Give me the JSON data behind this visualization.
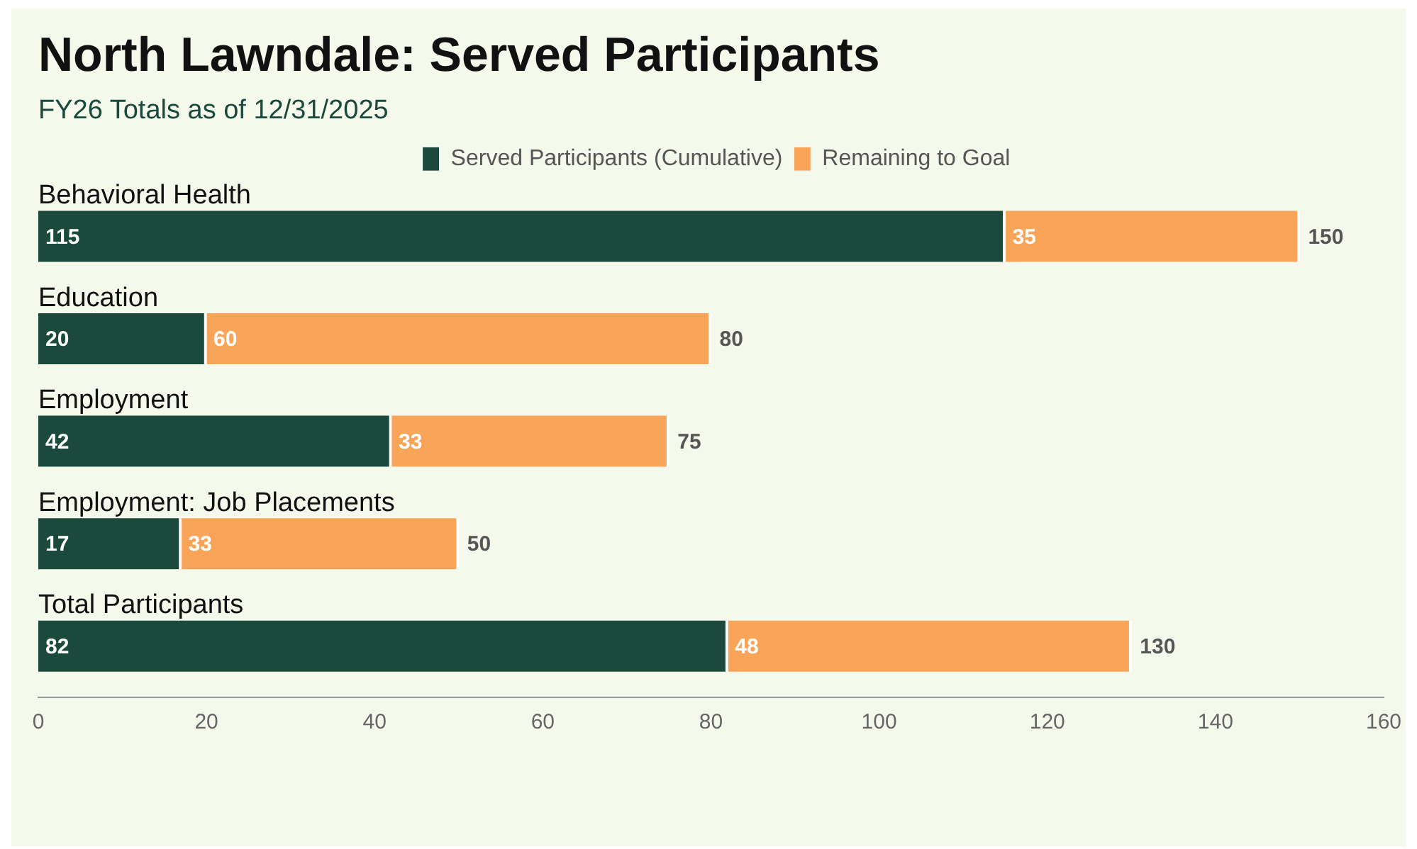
{
  "chart_data": {
    "type": "bar",
    "orientation": "horizontal",
    "stacked": true,
    "title": "North Lawndale: Served Participants",
    "subtitle": "FY26 Totals as of 12/31/2025",
    "categories": [
      "Behavioral Health",
      "Education",
      "Employment",
      "Employment: Job Placements",
      "Total Participants"
    ],
    "series": [
      {
        "name": "Served Participants (Cumulative)",
        "color": "#1b4a3d",
        "values": [
          115,
          20,
          42,
          17,
          82
        ]
      },
      {
        "name": "Remaining to Goal",
        "color": "#f9a559",
        "values": [
          35,
          60,
          33,
          33,
          48
        ]
      }
    ],
    "totals": [
      "150",
      "80",
      "75",
      "50",
      "130"
    ],
    "xlim": [
      0,
      160
    ],
    "xticks": [
      0,
      20,
      40,
      60,
      80,
      100,
      120,
      140,
      160
    ],
    "data_labels": true,
    "grid": false,
    "legend": "top"
  }
}
